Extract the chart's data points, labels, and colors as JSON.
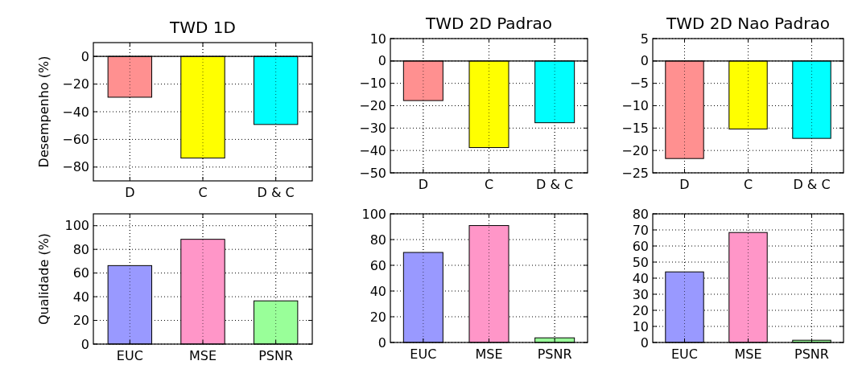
{
  "chart_data": [
    {
      "type": "bar",
      "title": "TWD 1D",
      "ylabel": "Desempenho (%)",
      "categories": [
        "D",
        "C",
        "D & C"
      ],
      "values": [
        -29.5,
        -73.5,
        -49.2
      ],
      "colors": [
        "#ff9090",
        "#ffff00",
        "#00ffff"
      ],
      "ylim": [
        -90,
        10
      ],
      "yticks": [
        0,
        {
          "value": -20,
          "label": "−20"
        },
        {
          "value": -40,
          "label": "−40"
        },
        {
          "value": -60,
          "label": "−60"
        },
        {
          "value": -80,
          "label": "−80"
        }
      ],
      "grid": true,
      "ref_lines": [
        {
          "axis": "y",
          "value": 0
        }
      ]
    },
    {
      "type": "bar",
      "title": "TWD 2D Padrao",
      "categories": [
        "D",
        "C",
        "D & C"
      ],
      "values": [
        -17.7,
        -38.7,
        -27.6
      ],
      "colors": [
        "#ff9090",
        "#ffff00",
        "#00ffff"
      ],
      "ylim": [
        -50,
        10
      ],
      "yticks": [
        10,
        0,
        {
          "value": -10,
          "label": "−10"
        },
        {
          "value": -20,
          "label": "−20"
        },
        {
          "value": -30,
          "label": "−30"
        },
        {
          "value": -40,
          "label": "−40"
        },
        {
          "value": -50,
          "label": "−50"
        }
      ],
      "grid": true,
      "ref_lines": [
        {
          "axis": "y",
          "value": 0
        }
      ]
    },
    {
      "type": "bar",
      "title": "TWD 2D Nao Padrao",
      "categories": [
        "D",
        "C",
        "D & C"
      ],
      "values": [
        -21.8,
        -15.2,
        -17.3
      ],
      "colors": [
        "#ff9090",
        "#ffff00",
        "#00ffff"
      ],
      "ylim": [
        -25,
        5
      ],
      "yticks": [
        5,
        0,
        {
          "value": -5,
          "label": "−5"
        },
        {
          "value": -10,
          "label": "−10"
        },
        {
          "value": -15,
          "label": "−15"
        },
        {
          "value": -20,
          "label": "−20"
        },
        {
          "value": -25,
          "label": "−25"
        }
      ],
      "grid": true,
      "ref_lines": [
        {
          "axis": "y",
          "value": 0
        }
      ]
    },
    {
      "type": "bar",
      "ylabel": "Qualidade (%)",
      "categories": [
        "EUC",
        "MSE",
        "PSNR"
      ],
      "values": [
        66.3,
        88.5,
        36.5
      ],
      "colors": [
        "#9999ff",
        "#ff96c8",
        "#99ff99"
      ],
      "ylim": [
        0,
        110
      ],
      "yticks": [
        0,
        20,
        40,
        60,
        80,
        100
      ],
      "grid": true
    },
    {
      "type": "bar",
      "categories": [
        "EUC",
        "MSE",
        "PSNR"
      ],
      "values": [
        70,
        90.9,
        3.6
      ],
      "colors": [
        "#9999ff",
        "#ff96c8",
        "#99ff99"
      ],
      "ylim": [
        0,
        100
      ],
      "yticks": [
        0,
        20,
        40,
        60,
        80,
        100
      ],
      "grid": true
    },
    {
      "type": "bar",
      "categories": [
        "EUC",
        "MSE",
        "PSNR"
      ],
      "values": [
        43.9,
        68.4,
        1.4
      ],
      "colors": [
        "#9999ff",
        "#ff96c8",
        "#99ff99"
      ],
      "ylim": [
        0,
        80
      ],
      "yticks": [
        0,
        10,
        20,
        30,
        40,
        50,
        60,
        70,
        80
      ],
      "grid": true
    }
  ]
}
